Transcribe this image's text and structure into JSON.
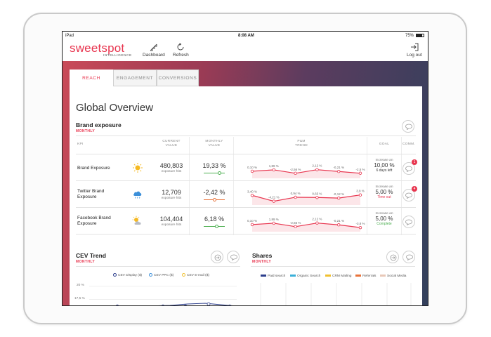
{
  "status_bar": {
    "device": "iPad",
    "time": "8:08 AM",
    "battery": "75%"
  },
  "header": {
    "logo": "sweetspot",
    "logo_sub": "INTELLIGENCE",
    "nav": [
      {
        "label": "Dashboard",
        "icon": "stairs-icon"
      },
      {
        "label": "Refresh",
        "icon": "refresh-icon"
      }
    ],
    "logout": {
      "label": "Log out",
      "icon": "logout-icon"
    }
  },
  "tabs": [
    {
      "label": "REACH",
      "active": true
    },
    {
      "label": "ENGAGEMENT",
      "active": false
    },
    {
      "label": "CONVERSIONS",
      "active": false
    }
  ],
  "page_title": "Global Overview",
  "brand_exposure": {
    "title": "Brand exposure",
    "period": "MONTHLY",
    "columns": {
      "kpi": "KPI",
      "current_1": "CURRENT",
      "current_2": "VALUE",
      "monthly_1": "MONTHLY",
      "monthly_2": "VALUE",
      "trend_1": "P&M",
      "trend_2": "TREND",
      "goal": "GOAL",
      "comments": "COMM."
    },
    "rows": [
      {
        "kpi": "Brand Exposure",
        "weather_icon": "sun-icon",
        "current_value": "480,803",
        "current_sub": "exposure hits",
        "monthly_value": "19,33 %",
        "slider": 0.75,
        "slider_color": "#4caf50",
        "trend_labels": [
          "0,10 %",
          "1,89 %",
          "-2,56 %",
          "2,12 %",
          "-0,21 %",
          "-2,5 %"
        ],
        "trend_values": [
          0.1,
          1.89,
          -2.56,
          2.12,
          -0.21,
          -2.5
        ],
        "goal_1": "Increase an",
        "goal_2": "10,00 %",
        "goal_3": "6 days left",
        "goal_3_color": "#333333",
        "badge": "1"
      },
      {
        "kpi": "Twitter Brand Exposure",
        "weather_icon": "rain-cloud-icon",
        "current_value": "12,709",
        "current_sub": "exposure hits",
        "monthly_value": "-2,42 %",
        "slider": 0.5,
        "slider_color": "#e8733a",
        "trend_labels": [
          "3,40 %",
          "-4,21 %",
          "0,94 %",
          "0,65 %",
          "-0,12 %",
          "3,9 %"
        ],
        "trend_values": [
          3.4,
          -4.21,
          0.94,
          0.65,
          -0.12,
          3.9
        ],
        "goal_1": "Increase an",
        "goal_2": "5,00 %",
        "goal_3": "Time out",
        "goal_3_color": "#e8344e",
        "badge": "4"
      },
      {
        "kpi": "Facebook Brand Exposure",
        "weather_icon": "partly-cloudy-icon",
        "current_value": "104,404",
        "current_sub": "exposure hits",
        "monthly_value": "6,18 %",
        "slider": 0.62,
        "slider_color": "#4caf50",
        "trend_labels": [
          "0,10 %",
          "1,89 %",
          "-2,56 %",
          "2,12 %",
          "-0,21 %",
          "-3,8 %"
        ],
        "trend_values": [
          0.1,
          1.89,
          -2.56,
          2.12,
          -0.21,
          -3.8
        ],
        "goal_1": "Increase an",
        "goal_2": "5,00 %",
        "goal_3": "Complete",
        "goal_3_color": "#4caf50",
        "badge": ""
      }
    ]
  },
  "cev_trend": {
    "title": "CEV Trend",
    "period": "MONTHLY",
    "legend": [
      {
        "label": "CEV Display ($)",
        "color": "#2c3e8c"
      },
      {
        "label": "CEV PPC ($)",
        "color": "#3b8fd9"
      },
      {
        "label": "CEV E-mail ($)",
        "color": "#f0c030"
      }
    ],
    "y_ticks": [
      "20 %",
      "17,5 %"
    ]
  },
  "shares": {
    "title": "Shares",
    "period": "MONTHLY",
    "legend": [
      {
        "label": "Paid search",
        "color": "#2c3e8c"
      },
      {
        "label": "Organic Search",
        "color": "#3bb0d9"
      },
      {
        "label": "CRM Mailing",
        "color": "#f0c030"
      },
      {
        "label": "Referrals",
        "color": "#e8733a"
      },
      {
        "label": "Social Media",
        "color": "#e8c8b8"
      }
    ]
  }
}
